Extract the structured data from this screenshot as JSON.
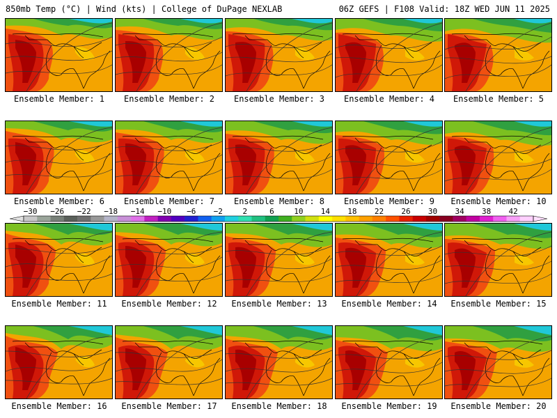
{
  "header": {
    "left": "850mb Temp (°C) | Wind (kts) | College of DuPage NEXLAB",
    "right": "06Z GEFS | F108 Valid: 18Z WED JUN 11 2025"
  },
  "member_label_prefix": "Ensemble Member: ",
  "members": [
    {
      "label": "Ensemble Member: 1"
    },
    {
      "label": "Ensemble Member: 2"
    },
    {
      "label": "Ensemble Member: 3"
    },
    {
      "label": "Ensemble Member: 4"
    },
    {
      "label": "Ensemble Member: 5"
    },
    {
      "label": "Ensemble Member: 6"
    },
    {
      "label": "Ensemble Member: 7"
    },
    {
      "label": "Ensemble Member: 8"
    },
    {
      "label": "Ensemble Member: 9"
    },
    {
      "label": "Ensemble Member: 10"
    },
    {
      "label": "Ensemble Member: 11"
    },
    {
      "label": "Ensemble Member: 12"
    },
    {
      "label": "Ensemble Member: 13"
    },
    {
      "label": "Ensemble Member: 14"
    },
    {
      "label": "Ensemble Member: 15"
    },
    {
      "label": "Ensemble Member: 16"
    },
    {
      "label": "Ensemble Member: 17"
    },
    {
      "label": "Ensemble Member: 18"
    },
    {
      "label": "Ensemble Member: 19"
    },
    {
      "label": "Ensemble Member: 20"
    }
  ],
  "colorbar": {
    "units": "°C",
    "tick_labels": [
      "−30",
      "−26",
      "−22",
      "−18",
      "−14",
      "−10",
      "−6",
      "−2",
      "2",
      "6",
      "10",
      "14",
      "18",
      "22",
      "26",
      "30",
      "34",
      "38",
      "42"
    ],
    "colors": [
      "#c8c8c8",
      "#9aa59a",
      "#788078",
      "#5a605a",
      "#707070",
      "#989898",
      "#b4b4c8",
      "#c890d8",
      "#e070e8",
      "#c020c0",
      "#8000b0",
      "#5000c0",
      "#2020d0",
      "#1060f0",
      "#10a0f0",
      "#20d0e0",
      "#30e0b0",
      "#20c080",
      "#10a050",
      "#40b020",
      "#90d020",
      "#d0e010",
      "#ffff00",
      "#ffe000",
      "#ffc000",
      "#ffa000",
      "#ff8000",
      "#ff5000",
      "#e82000",
      "#c80000",
      "#a00000",
      "#880020",
      "#a00060",
      "#c000a0",
      "#e020d0",
      "#f060f0",
      "#f8a0f8",
      "#ffd0ff"
    ]
  }
}
